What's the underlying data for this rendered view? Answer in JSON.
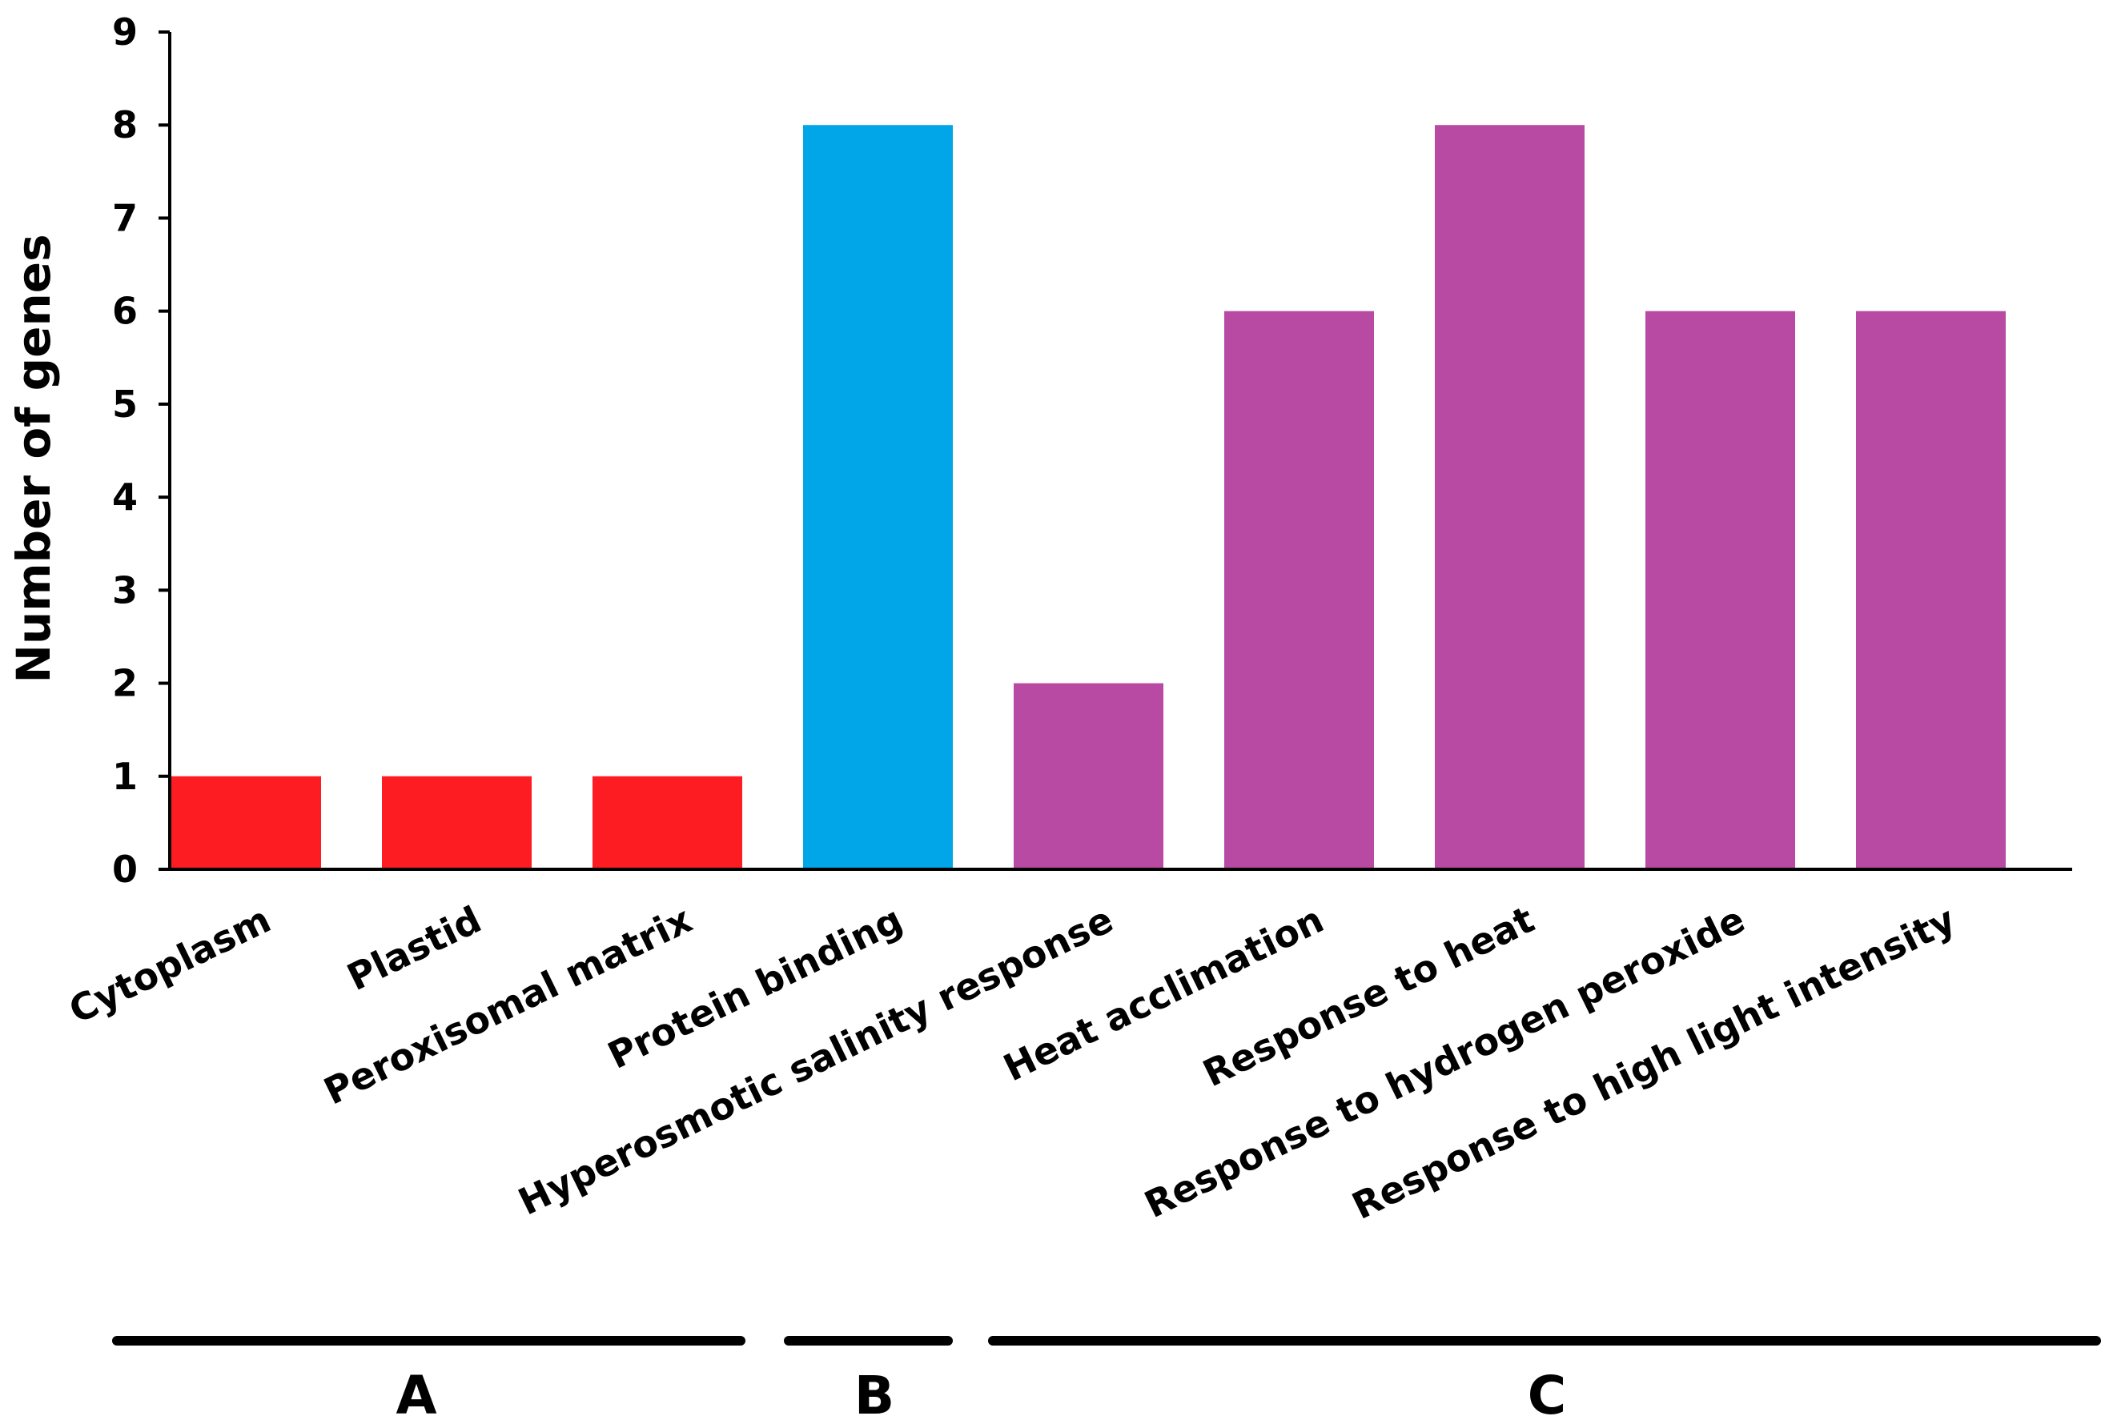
{
  "chart_data": {
    "type": "bar",
    "title": "",
    "xlabel": "",
    "ylabel": "Number of genes",
    "ylim": [
      0,
      9
    ],
    "yticks": [
      0,
      1,
      2,
      3,
      4,
      5,
      6,
      7,
      8,
      9
    ],
    "grid": false,
    "categories": [
      "Cytoplasm",
      "Plastid",
      "Peroxisomal matrix",
      "Protein binding",
      "Hyperosmotic salinity response",
      "Heat acclimation",
      "Response to heat",
      "Response to hydrogen peroxide",
      "Response to high light intensity"
    ],
    "values": [
      1,
      1,
      1,
      8,
      2,
      6,
      8,
      6,
      6
    ],
    "groups": [
      {
        "label": "A",
        "start": 0,
        "end": 2,
        "color": "#fe1c23"
      },
      {
        "label": "B",
        "start": 3,
        "end": 3,
        "color": "#00a6e8"
      },
      {
        "label": "C",
        "start": 4,
        "end": 8,
        "color": "#b84aa4"
      }
    ]
  }
}
